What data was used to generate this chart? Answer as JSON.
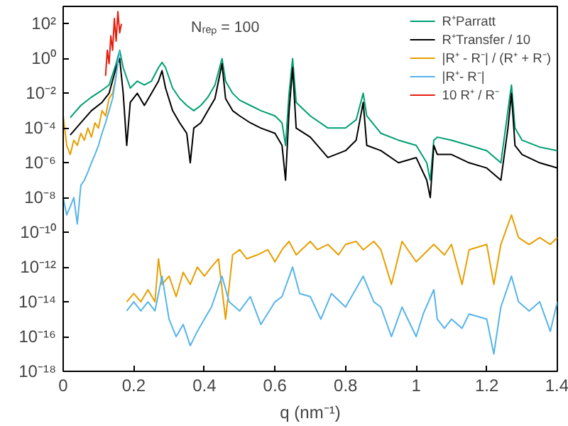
{
  "chart_data": {
    "type": "line",
    "xlabel": "q (nm⁻¹)",
    "log": "y",
    "grid": false,
    "legend": "top right",
    "line_style": "solid",
    "annotations": [
      "Nᵣₑₚ = 100"
    ],
    "xlim": [
      0,
      1.4
    ],
    "xticks": [
      0,
      0.2,
      0.4,
      0.6,
      0.8,
      1,
      1.2,
      1.4
    ],
    "ylim": [
      1e-18,
      1000.0
    ],
    "yticks": [
      {
        "value": 1e-18,
        "label": "10⁻¹⁸"
      },
      {
        "value": 1e-16,
        "label": "10⁻¹⁶"
      },
      {
        "value": 1e-14,
        "label": "10⁻¹⁴"
      },
      {
        "value": 1e-12,
        "label": "10⁻¹²"
      },
      {
        "value": 1e-10,
        "label": "10⁻¹⁰"
      },
      {
        "value": 1e-08,
        "label": "10⁻⁸"
      },
      {
        "value": 1e-06,
        "label": "10⁻⁶"
      },
      {
        "value": 0.0001,
        "label": "10⁻⁴"
      },
      {
        "value": 0.01,
        "label": "10⁻²"
      },
      {
        "value": 1,
        "label": "10⁰"
      },
      {
        "value": 100,
        "label": "10²"
      }
    ],
    "series": [
      {
        "name": "R⁺Parratt",
        "color": "#009e73",
        "x": [
          0.02,
          0.05,
          0.08,
          0.11,
          0.13,
          0.15,
          0.16,
          0.17,
          0.19,
          0.21,
          0.23,
          0.25,
          0.27,
          0.28,
          0.29,
          0.31,
          0.33,
          0.35,
          0.37,
          0.39,
          0.41,
          0.43,
          0.45,
          0.46,
          0.48,
          0.5,
          0.53,
          0.56,
          0.6,
          0.62,
          0.63,
          0.64,
          0.65,
          0.66,
          0.7,
          0.75,
          0.8,
          0.83,
          0.85,
          0.86,
          0.9,
          0.95,
          1.0,
          1.03,
          1.04,
          1.05,
          1.06,
          1.1,
          1.15,
          1.2,
          1.24,
          1.26,
          1.27,
          1.28,
          1.3,
          1.35,
          1.4
        ],
        "values": [
          0.0004,
          0.002,
          0.006,
          0.015,
          0.03,
          0.5,
          3,
          0.3,
          0.02,
          0.05,
          0.03,
          0.05,
          0.3,
          0.6,
          0.3,
          0.02,
          0.005,
          0.002,
          0.001,
          0.002,
          0.006,
          0.03,
          1,
          0.05,
          0.01,
          0.004,
          0.002,
          0.001,
          0.0005,
          0.0002,
          1e-05,
          0.01,
          1,
          0.003,
          0.0005,
          0.0001,
          0.0001,
          0.0003,
          0.01,
          0.0005,
          5e-05,
          2e-05,
          1e-05,
          1e-06,
          1e-07,
          2e-05,
          3e-05,
          2e-05,
          1e-05,
          5e-06,
          1e-06,
          0.001,
          0.03,
          0.0001,
          2e-05,
          8e-06,
          5e-06
        ]
      },
      {
        "name": "R⁺Transfer / 10",
        "color": "#000000",
        "x": [
          0.02,
          0.05,
          0.08,
          0.11,
          0.13,
          0.15,
          0.16,
          0.17,
          0.18,
          0.19,
          0.21,
          0.23,
          0.25,
          0.27,
          0.28,
          0.29,
          0.31,
          0.33,
          0.35,
          0.36,
          0.37,
          0.39,
          0.41,
          0.43,
          0.45,
          0.46,
          0.48,
          0.5,
          0.53,
          0.56,
          0.6,
          0.62,
          0.63,
          0.64,
          0.65,
          0.66,
          0.7,
          0.75,
          0.8,
          0.83,
          0.85,
          0.86,
          0.9,
          0.95,
          1.0,
          1.03,
          1.04,
          1.05,
          1.06,
          1.1,
          1.15,
          1.2,
          1.24,
          1.26,
          1.27,
          1.28,
          1.3,
          1.35,
          1.4
        ],
        "values": [
          4e-05,
          0.0002,
          0.001,
          0.003,
          0.01,
          0.3,
          1,
          0.01,
          1e-05,
          0.003,
          0.01,
          0.002,
          0.01,
          0.05,
          0.2,
          0.02,
          0.001,
          0.0002,
          5e-05,
          1e-06,
          0.0001,
          0.0002,
          0.001,
          0.005,
          0.5,
          0.005,
          0.001,
          0.0005,
          0.0002,
          0.0001,
          5e-05,
          1e-05,
          1e-07,
          0.001,
          0.3,
          0.0001,
          3e-05,
          2e-06,
          5e-06,
          2e-05,
          0.003,
          1e-05,
          5e-06,
          1e-06,
          2e-06,
          1e-07,
          1e-08,
          1e-05,
          3e-06,
          3e-06,
          1e-06,
          5e-07,
          1e-07,
          0.0001,
          0.01,
          1e-05,
          3e-06,
          1e-06,
          5e-07
        ]
      },
      {
        "name": "|R⁺ - R⁻| / (R⁺ + R⁻)",
        "color": "#e69f00",
        "x": [
          0.0,
          0.01,
          0.02,
          0.03,
          0.04,
          0.05,
          0.06,
          0.07,
          0.08,
          0.09,
          0.1,
          0.11,
          0.12,
          0.13,
          0.14,
          0.15,
          0.16,
          0.18,
          0.2,
          0.22,
          0.24,
          0.26,
          0.27,
          0.28,
          0.3,
          0.32,
          0.34,
          0.36,
          0.38,
          0.4,
          0.42,
          0.44,
          0.46,
          0.48,
          0.5,
          0.52,
          0.55,
          0.58,
          0.6,
          0.62,
          0.64,
          0.66,
          0.7,
          0.72,
          0.75,
          0.78,
          0.8,
          0.83,
          0.85,
          0.88,
          0.9,
          0.93,
          0.96,
          1.0,
          1.02,
          1.05,
          1.08,
          1.1,
          1.13,
          1.15,
          1.2,
          1.22,
          1.24,
          1.27,
          1.29,
          1.32,
          1.35,
          1.38,
          1.4
        ],
        "values": [
          0.0005,
          1e-05,
          3e-06,
          2e-05,
          1e-05,
          5e-05,
          2e-05,
          0.0001,
          3e-05,
          0.0002,
          0.0001,
          0.001,
          0.0005,
          0.005,
          0.01,
          0.1,
          null,
          1e-14,
          3e-14,
          1e-14,
          5e-14,
          1e-14,
          3e-12,
          1e-13,
          3e-13,
          2e-14,
          5e-13,
          1e-13,
          1e-12,
          3e-13,
          1e-12,
          3e-12,
          1e-15,
          5e-12,
          1e-11,
          3e-12,
          5e-12,
          1e-11,
          2e-12,
          1e-11,
          3e-11,
          5e-12,
          3e-11,
          1e-11,
          2e-11,
          5e-12,
          2e-11,
          3e-11,
          1e-11,
          3e-11,
          1e-11,
          1e-13,
          3e-11,
          2e-12,
          5e-12,
          2e-11,
          5e-12,
          2e-11,
          1e-13,
          1e-11,
          2e-11,
          1e-13,
          2e-11,
          1e-09,
          5e-11,
          2e-11,
          5e-11,
          2e-11,
          5e-11
        ]
      },
      {
        "name": "|R⁺- R⁻|",
        "color": "#56b4e9",
        "x": [
          0.0,
          0.01,
          0.02,
          0.03,
          0.04,
          0.05,
          0.06,
          0.07,
          0.08,
          0.09,
          0.1,
          0.11,
          0.12,
          0.13,
          0.14,
          0.15,
          0.16,
          0.17,
          0.18,
          0.2,
          0.22,
          0.24,
          0.26,
          0.28,
          0.3,
          0.32,
          0.34,
          0.36,
          0.38,
          0.4,
          0.42,
          0.45,
          0.47,
          0.5,
          0.53,
          0.56,
          0.6,
          0.62,
          0.65,
          0.67,
          0.7,
          0.73,
          0.76,
          0.8,
          0.85,
          0.88,
          0.9,
          0.93,
          0.96,
          1.0,
          1.02,
          1.05,
          1.06,
          1.08,
          1.1,
          1.13,
          1.15,
          1.2,
          1.22,
          1.24,
          1.27,
          1.29,
          1.32,
          1.35,
          1.38,
          1.4
        ],
        "values": [
          1e-08,
          1e-09,
          3e-09,
          1e-08,
          3e-10,
          5e-08,
          1e-07,
          3e-07,
          1e-06,
          3e-06,
          1e-05,
          5e-05,
          0.0002,
          0.001,
          0.005,
          0.1,
          3,
          null,
          3e-15,
          1e-14,
          3e-15,
          1e-14,
          3e-15,
          3e-13,
          1e-15,
          1e-16,
          5e-16,
          3e-17,
          2e-16,
          1e-15,
          5e-15,
          3e-13,
          1e-14,
          3e-15,
          2e-14,
          5e-16,
          1e-14,
          2e-14,
          1e-12,
          3e-14,
          2e-14,
          1e-15,
          3e-14,
          5e-15,
          3e-13,
          1e-14,
          5e-15,
          1e-16,
          5e-15,
          1e-16,
          2e-15,
          5e-14,
          1e-15,
          3e-16,
          1e-15,
          3e-16,
          2e-15,
          1e-15,
          1e-17,
          5e-15,
          3e-13,
          1e-14,
          3e-15,
          1e-14,
          2e-16,
          1e-14
        ]
      },
      {
        "name": "10 R⁺ / R⁻",
        "color": "#e51e10",
        "x": [
          0.12,
          0.125,
          0.13,
          0.135,
          0.14,
          0.145,
          0.15,
          0.155,
          0.16,
          0.165
        ],
        "values": [
          0.1,
          3,
          0.5,
          20,
          3,
          200,
          10,
          500,
          30,
          100
        ]
      }
    ]
  }
}
